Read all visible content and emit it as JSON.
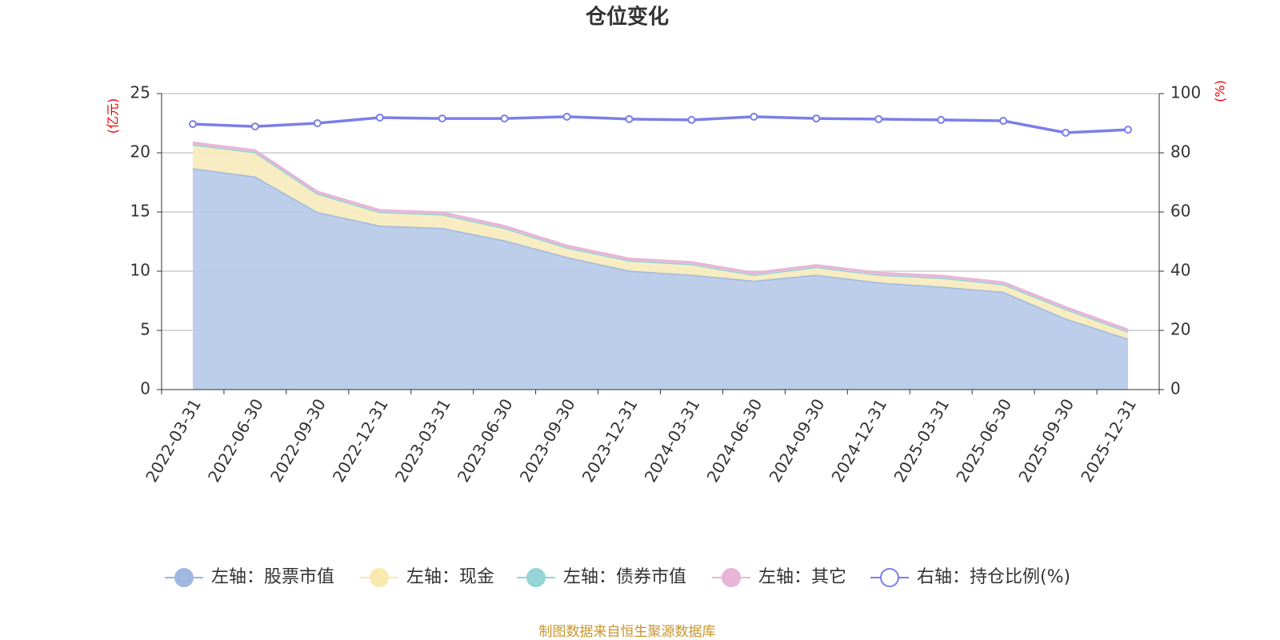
{
  "chart_data": {
    "type": "stacked-area-line",
    "title": "仓位变化",
    "categories": [
      "2022-03-31",
      "2022-06-30",
      "2022-09-30",
      "2022-12-31",
      "2023-03-31",
      "2023-06-30",
      "2023-09-30",
      "2023-12-31",
      "2024-03-31",
      "2024-06-30",
      "2024-09-30",
      "2024-12-31",
      "2025-03-31",
      "2025-06-30",
      "2025-09-30",
      "2025-12-31"
    ],
    "y_label": "(亿元)",
    "y2_label": "(%)",
    "ylim": [
      0,
      25
    ],
    "yticks": [
      0,
      5,
      10,
      15,
      20,
      25
    ],
    "y2lim": [
      0,
      100
    ],
    "y2ticks": [
      0,
      20,
      40,
      60,
      80,
      100
    ],
    "grid": true,
    "series": [
      {
        "name": "左轴：股票市值",
        "color": "#a0b8e0",
        "fill": "#b8cbe9",
        "values": [
          18.7,
          18.0,
          15.0,
          13.85,
          13.65,
          12.6,
          11.2,
          10.05,
          9.7,
          9.2,
          9.7,
          9.05,
          8.7,
          8.25,
          6.0,
          4.3
        ]
      },
      {
        "name": "左轴：现金",
        "color": "#f8e9b0",
        "fill": "#f8ecbf",
        "values": [
          2.0,
          2.05,
          1.55,
          1.15,
          1.15,
          1.05,
          0.8,
          0.85,
          0.9,
          0.5,
          0.65,
          0.65,
          0.75,
          0.65,
          0.8,
          0.6
        ]
      },
      {
        "name": "左轴：债券市值",
        "color": "#94d4d4",
        "fill": "#a8dcdc",
        "values": [
          0,
          0,
          0,
          0,
          0,
          0,
          0,
          0,
          0,
          0,
          0,
          0,
          0,
          0,
          0,
          0
        ]
      },
      {
        "name": "左轴：其它",
        "color": "#e8b4d8",
        "fill": "#eec4e0",
        "values": [
          0.15,
          0.15,
          0.15,
          0.15,
          0.15,
          0.15,
          0.15,
          0.15,
          0.15,
          0.15,
          0.15,
          0.15,
          0.15,
          0.15,
          0.15,
          0.15
        ]
      },
      {
        "name": "右轴：持仓比例(%)",
        "color": "#7b7fe8",
        "axis": "y2",
        "values": [
          89.7,
          88.9,
          90.0,
          91.9,
          91.6,
          91.6,
          92.2,
          91.4,
          91.1,
          92.2,
          91.6,
          91.4,
          91.1,
          90.8,
          86.8,
          87.8
        ]
      }
    ],
    "source": "制图数据来自恒生聚源数据库"
  }
}
